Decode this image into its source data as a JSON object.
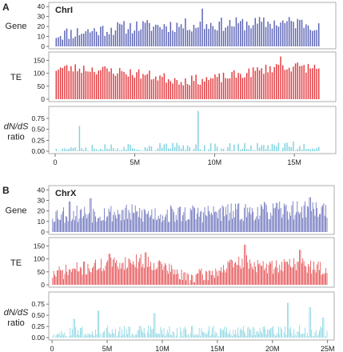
{
  "colors": {
    "gene": "#5a62b4",
    "te": "#e2393d",
    "ratio": "#7fd2df",
    "frame": "#9a9a9a",
    "text": "#222222"
  },
  "chart_data": [
    {
      "type": "bar",
      "panel_letter": "A",
      "chromosome": "ChrI",
      "x_unit_max": 16.6,
      "x_ticks": [
        {
          "value": 0,
          "label": "0"
        },
        {
          "value": 5,
          "label": "5M"
        },
        {
          "value": 10,
          "label": "10M"
        },
        {
          "value": 15,
          "label": "15M"
        }
      ],
      "xlim": [
        -0.4,
        17.6
      ],
      "tracks": [
        {
          "label_lines": [
            "Gene"
          ],
          "ylim": [
            0,
            41
          ],
          "yticks": [
            "0",
            "10",
            "20",
            "30",
            "40"
          ],
          "ytick_values": [
            0,
            10,
            20,
            30,
            40
          ],
          "bins": 125,
          "profile": [
            [
              0,
              12
            ],
            [
              5,
              20
            ],
            [
              10,
              22
            ],
            [
              15,
              24
            ],
            [
              16.6,
              22
            ]
          ],
          "peaks": [
            [
              9.2,
              38
            ]
          ],
          "jitter": 7,
          "seed": 11
        },
        {
          "label_lines": [
            "TE"
          ],
          "ylim": [
            0,
            170
          ],
          "yticks": [
            "0",
            "50",
            "100",
            "150"
          ],
          "ytick_values": [
            0,
            50,
            100,
            150
          ],
          "bins": 125,
          "profile": [
            [
              0,
              120
            ],
            [
              2,
              118
            ],
            [
              5,
              100
            ],
            [
              8,
              72
            ],
            [
              10,
              78
            ],
            [
              12,
              100
            ],
            [
              14,
              128
            ],
            [
              16.6,
              120
            ]
          ],
          "peaks": [
            [
              14.1,
              165
            ]
          ],
          "jitter": 20,
          "seed": 23
        },
        {
          "label_lines": [
            "dN/dS",
            "ratio"
          ],
          "ylim": [
            0,
            0.95
          ],
          "yticks": [
            "0.00",
            "0.25",
            "0.50",
            "0.75"
          ],
          "ytick_values": [
            0,
            0.25,
            0.5,
            0.75
          ],
          "bins": 125,
          "profile": [
            [
              0,
              0.1
            ],
            [
              16.6,
              0.1
            ]
          ],
          "peaks": [
            [
              9.0,
              0.92
            ],
            [
              1.5,
              0.58
            ],
            [
              14.9,
              0.22
            ]
          ],
          "jitter": 0.1,
          "seed": 37
        }
      ]
    },
    {
      "type": "bar",
      "panel_letter": "B",
      "chromosome": "ChrX",
      "x_unit_max": 25,
      "x_ticks": [
        {
          "value": 0,
          "label": "0"
        },
        {
          "value": 5,
          "label": "5M"
        },
        {
          "value": 10,
          "label": "10M"
        },
        {
          "value": 15,
          "label": "15M"
        },
        {
          "value": 20,
          "label": "20M"
        },
        {
          "value": 25,
          "label": "25M"
        }
      ],
      "xlim": [
        -0.3,
        25.6
      ],
      "tracks": [
        {
          "label_lines": [
            "Gene"
          ],
          "ylim": [
            0,
            41
          ],
          "yticks": [
            "0",
            "10",
            "20",
            "30",
            "40"
          ],
          "ytick_values": [
            0,
            10,
            20,
            30,
            40
          ],
          "bins": 250,
          "profile": [
            [
              0,
              17
            ],
            [
              5,
              18
            ],
            [
              10,
              17
            ],
            [
              15,
              18
            ],
            [
              20,
              20
            ],
            [
              25,
              22
            ]
          ],
          "peaks": [
            [
              3.5,
              32
            ],
            [
              23.4,
              33
            ],
            [
              1.6,
              29
            ]
          ],
          "jitter": 9,
          "seed": 53
        },
        {
          "label_lines": [
            "TE"
          ],
          "ylim": [
            0,
            170
          ],
          "yticks": [
            "0",
            "50",
            "100",
            "150"
          ],
          "ytick_values": [
            0,
            50,
            100,
            150
          ],
          "bins": 250,
          "profile": [
            [
              0,
              40
            ],
            [
              2,
              58
            ],
            [
              5,
              78
            ],
            [
              8,
              92
            ],
            [
              10,
              75
            ],
            [
              12,
              28
            ],
            [
              14,
              38
            ],
            [
              16,
              70
            ],
            [
              17.5,
              92
            ],
            [
              19,
              68
            ],
            [
              20,
              70
            ],
            [
              22,
              85
            ],
            [
              24,
              65
            ],
            [
              25,
              60
            ]
          ],
          "peaks": [
            [
              17.5,
              155
            ],
            [
              22.5,
              135
            ],
            [
              8.5,
              125
            ],
            [
              5.2,
              120
            ]
          ],
          "jitter": 28,
          "seed": 71
        },
        {
          "label_lines": [
            "dN/dS",
            "ratio"
          ],
          "ylim": [
            0,
            0.95
          ],
          "yticks": [
            "0.00",
            "0.25",
            "0.50",
            "0.75"
          ],
          "ytick_values": [
            0,
            0.25,
            0.5,
            0.75
          ],
          "bins": 250,
          "profile": [
            [
              0,
              0.14
            ],
            [
              25,
              0.14
            ]
          ],
          "peaks": [
            [
              21.4,
              0.78
            ],
            [
              23.4,
              0.68
            ],
            [
              4.2,
              0.6
            ],
            [
              9.3,
              0.55
            ],
            [
              24.6,
              0.45
            ],
            [
              2.0,
              0.42
            ]
          ],
          "jitter": 0.13,
          "seed": 97
        }
      ]
    }
  ]
}
